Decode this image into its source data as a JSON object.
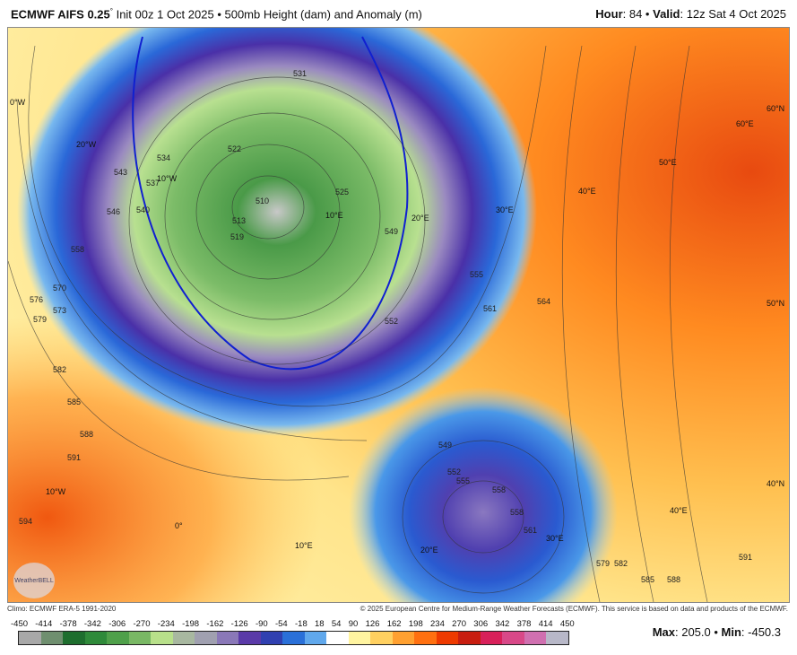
{
  "header": {
    "model": "ECMWF AIFS 0.25",
    "degree": "°",
    "init": " Init 00z 1 Oct 2025 • 500mb Height (dam) and Anomaly (m)",
    "hour_label": "Hour",
    "hour": ": 84 • ",
    "valid_label": "Valid",
    "valid": ": 12z Sat 4 Oct 2025"
  },
  "map": {
    "geo_labels": [
      "0°W",
      "20°W",
      "10°W",
      "10°E",
      "20°E",
      "30°E",
      "40°E",
      "50°E",
      "60°E",
      "60°N",
      "50°N",
      "40°N",
      "40°E",
      "30°E",
      "20°E",
      "10°E",
      "0°",
      "10°W"
    ],
    "contour_labels": [
      "531",
      "522",
      "510",
      "513",
      "519",
      "525",
      "534",
      "537",
      "540",
      "543",
      "546",
      "558",
      "570",
      "573",
      "576",
      "579",
      "582",
      "585",
      "588",
      "591",
      "594",
      "549",
      "552",
      "555",
      "561",
      "564",
      "558",
      "561",
      "579",
      "582",
      "585",
      "588",
      "591",
      "549",
      "552",
      "555",
      "558"
    ],
    "logo": "WeatherBELL"
  },
  "footer": {
    "climo": "Climo: ECMWF ERA-5 1991-2020",
    "copyright": "© 2025 European Centre for Medium-Range Weather Forecasts (ECMWF). This service is based on data and products of the ECMWF."
  },
  "colorbar": {
    "ticks": [
      "-450",
      "-414",
      "-378",
      "-342",
      "-306",
      "-270",
      "-234",
      "-198",
      "-162",
      "-126",
      "-90",
      "-54",
      "-18",
      "18",
      "54",
      "90",
      "126",
      "162",
      "198",
      "234",
      "270",
      "306",
      "342",
      "378",
      "414",
      "450"
    ],
    "colors": [
      "#a8a8a8",
      "#6f8f6f",
      "#1e6e2e",
      "#2f8a3a",
      "#4fa04a",
      "#79b864",
      "#b8e08a",
      "#a8b8a0",
      "#a0a0b0",
      "#8a78b8",
      "#5a3aa8",
      "#3040b0",
      "#2a70d8",
      "#60a8ec",
      "#ffffff",
      "#fff4a0",
      "#ffd060",
      "#ffa030",
      "#ff7010",
      "#ee3a00",
      "#c81e10",
      "#d8205a",
      "#d84888",
      "#d070b0",
      "#b8b8c8"
    ]
  },
  "stats": {
    "max_label": "Max",
    "max": ": 205.0 • ",
    "min_label": "Min",
    "min": ": -450.3"
  }
}
